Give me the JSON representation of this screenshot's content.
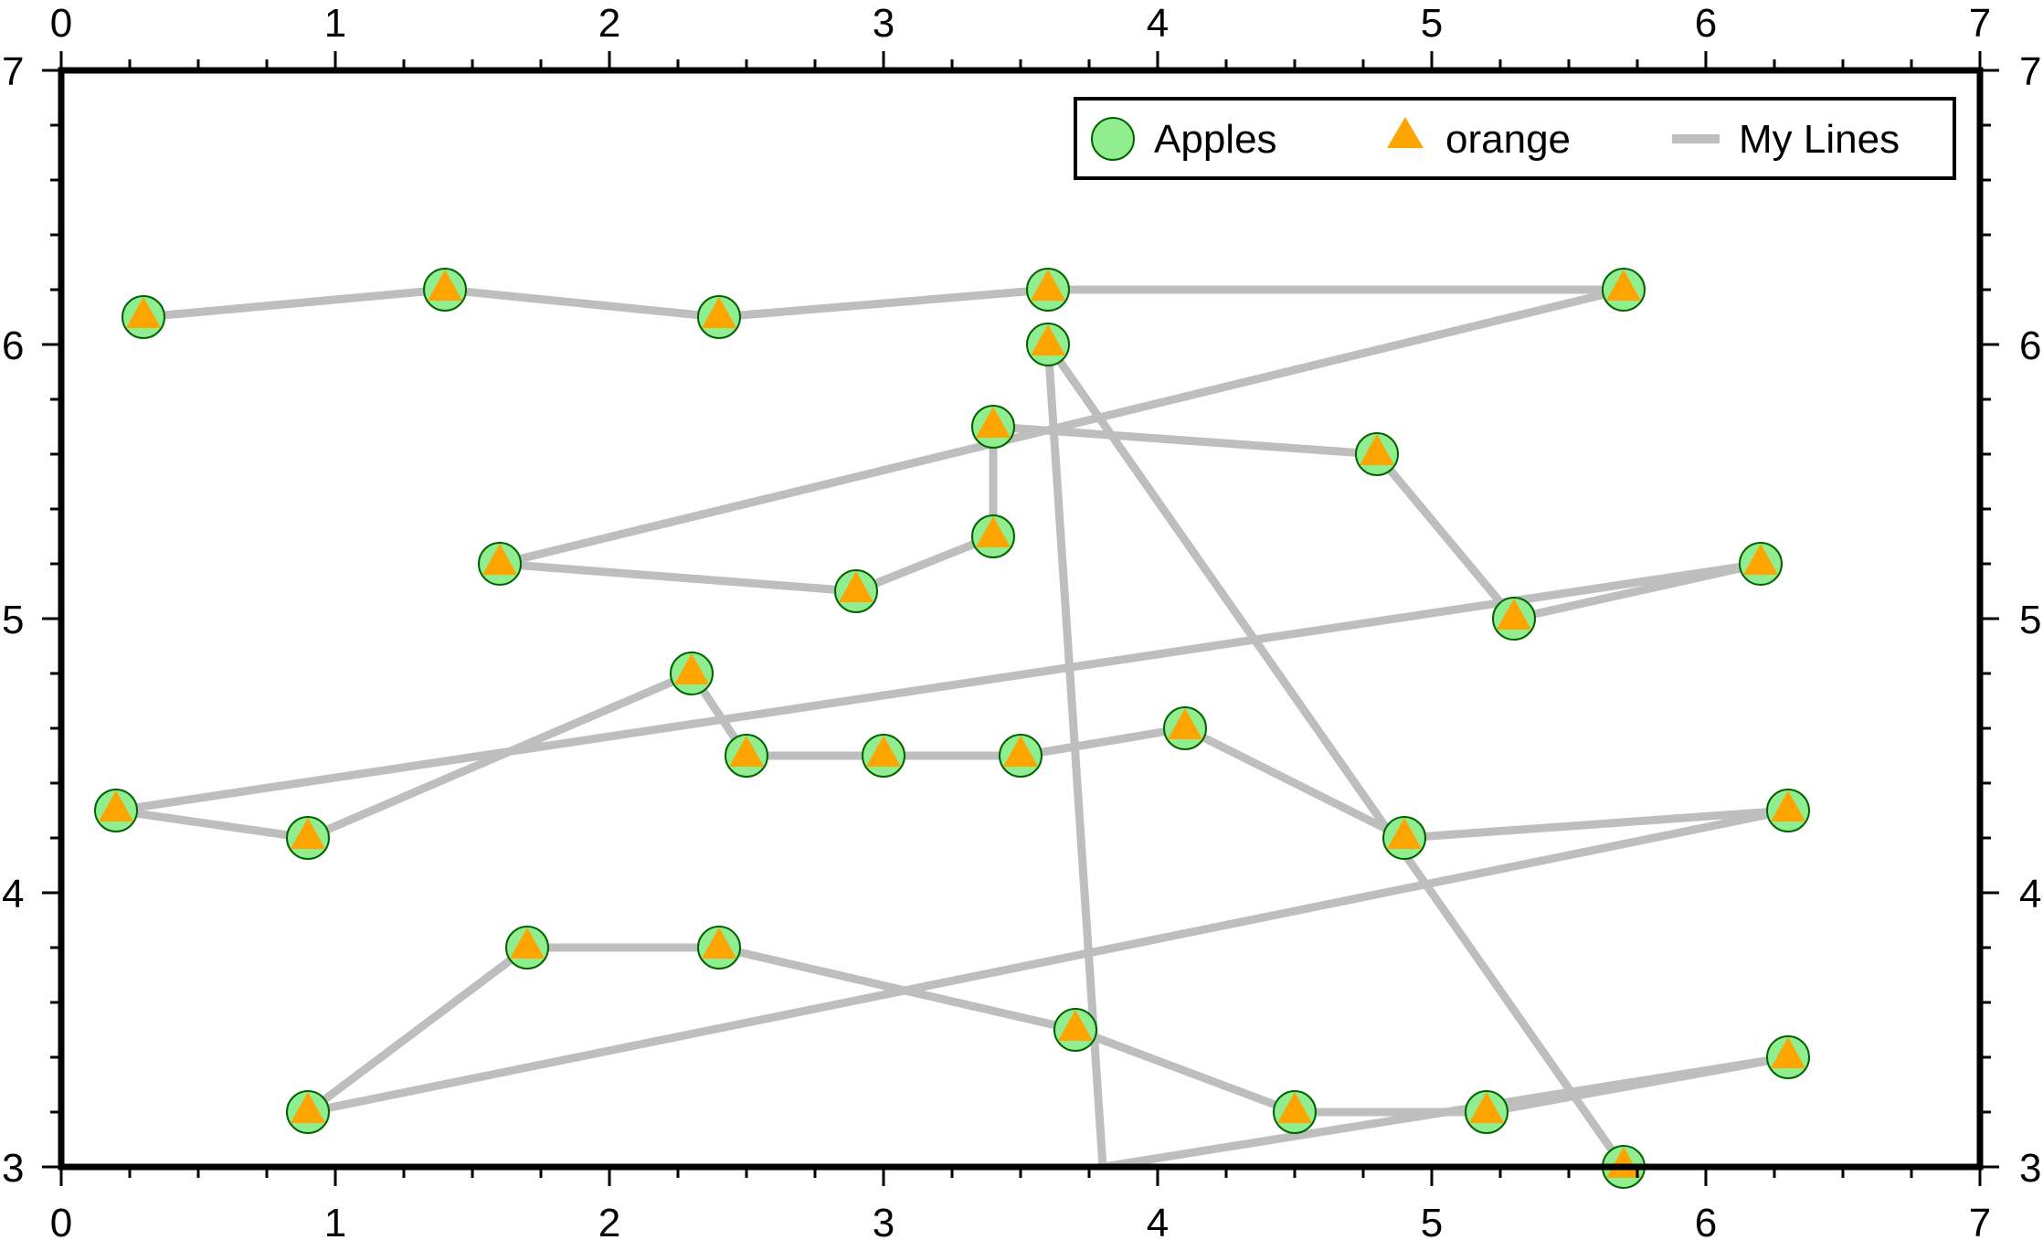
{
  "chart_data": {
    "type": "scatter",
    "title": "",
    "xlabel": "",
    "ylabel": "",
    "xlim": [
      0,
      7
    ],
    "ylim": [
      3,
      7
    ],
    "x_ticks": [
      "0",
      "1",
      "2",
      "3",
      "4",
      "5",
      "6",
      "7"
    ],
    "y_ticks": [
      "3",
      "4",
      "5",
      "6",
      "7"
    ],
    "grid": false,
    "legend": {
      "position": "top-right",
      "entries": [
        "Apples",
        "orange",
        "My Lines"
      ]
    },
    "colors": {
      "apples_fill": "#90EE90",
      "apples_edge": "#006400",
      "orange_fill": "#FFA500",
      "line": "#BEBEBE"
    },
    "series": [
      {
        "name": "Apples",
        "marker": "circle",
        "x": [
          0.3,
          1.4,
          2.4,
          3.6,
          5.7,
          1.6,
          2.9,
          3.4,
          3.4,
          4.8,
          5.3,
          6.2,
          0.2,
          0.9,
          2.3,
          2.5,
          3.0,
          3.5,
          4.1,
          4.9,
          6.3,
          0.9,
          1.7,
          2.4,
          3.7,
          4.5,
          5.2,
          6.3,
          3.6,
          5.7
        ],
        "y": [
          6.1,
          6.2,
          6.1,
          6.2,
          6.2,
          5.2,
          5.1,
          5.3,
          5.7,
          5.6,
          5.0,
          5.2,
          4.3,
          4.2,
          4.8,
          4.5,
          4.5,
          4.5,
          4.6,
          4.2,
          4.3,
          3.2,
          3.8,
          3.8,
          3.5,
          3.2,
          3.2,
          3.4,
          6.0,
          3.0
        ]
      },
      {
        "name": "orange",
        "marker": "triangle",
        "x": [
          0.3,
          1.4,
          2.4,
          3.6,
          5.7,
          1.6,
          2.9,
          3.4,
          3.4,
          4.8,
          5.3,
          6.2,
          0.2,
          0.9,
          2.3,
          2.5,
          3.0,
          3.5,
          4.1,
          4.9,
          6.3,
          0.9,
          1.7,
          2.4,
          3.7,
          4.5,
          5.2,
          6.3,
          3.6,
          5.7
        ],
        "y": [
          6.1,
          6.2,
          6.1,
          6.2,
          6.2,
          5.2,
          5.1,
          5.3,
          5.7,
          5.6,
          5.0,
          5.2,
          4.3,
          4.2,
          4.8,
          4.5,
          4.5,
          4.5,
          4.6,
          4.2,
          4.3,
          3.2,
          3.8,
          3.8,
          3.5,
          3.2,
          3.2,
          3.4,
          6.0,
          3.0
        ]
      },
      {
        "name": "My Lines",
        "marker": "line",
        "x": [
          0.3,
          1.4,
          2.4,
          3.6,
          5.7,
          1.6,
          2.9,
          3.4,
          3.4,
          4.8,
          5.3,
          6.2,
          0.2,
          0.9,
          2.3,
          2.5,
          3.0,
          3.5,
          4.1,
          4.9,
          6.3,
          0.9,
          1.7,
          2.4,
          3.7,
          4.5,
          5.2,
          6.3,
          3.8,
          3.6,
          5.7
        ],
        "y": [
          6.1,
          6.2,
          6.1,
          6.2,
          6.2,
          5.2,
          5.1,
          5.3,
          5.7,
          5.6,
          5.0,
          5.2,
          4.3,
          4.2,
          4.8,
          4.5,
          4.5,
          4.5,
          4.6,
          4.2,
          4.3,
          3.2,
          3.8,
          3.8,
          3.5,
          3.2,
          3.2,
          3.4,
          3.0,
          6.0,
          3.0
        ]
      }
    ]
  }
}
